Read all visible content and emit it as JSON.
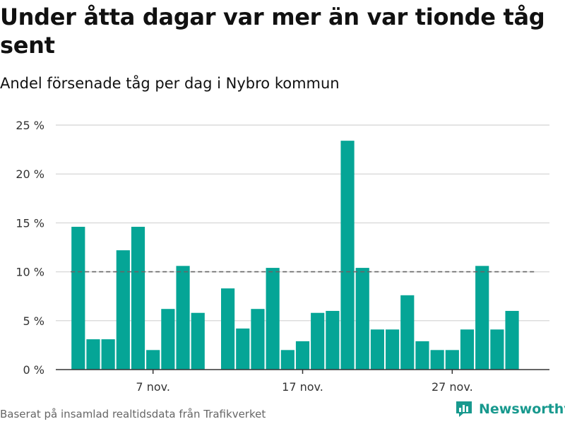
{
  "header": {
    "title": "Under åtta dagar var mer än var tionde tåg sent",
    "subtitle": "Andel försenade tåg per dag i Nybro kommun"
  },
  "footer": {
    "source": "Baserat på insamlad realtidsdata från Trafikverket",
    "brand": "Newsworthy"
  },
  "colors": {
    "bar": "#05a596",
    "grid": "#dcdcdc",
    "reference": "#666666",
    "brand": "#18998e"
  },
  "chart_data": {
    "type": "bar",
    "x": [
      "1 nov.",
      "2 nov.",
      "3 nov.",
      "4 nov.",
      "5 nov.",
      "6 nov.",
      "7 nov.",
      "8 nov.",
      "9 nov.",
      "10 nov.",
      "11 nov.",
      "12 nov.",
      "13 nov.",
      "14 nov.",
      "15 nov.",
      "16 nov.",
      "17 nov.",
      "18 nov.",
      "19 nov.",
      "20 nov.",
      "21 nov.",
      "22 nov.",
      "23 nov.",
      "24 nov.",
      "25 nov.",
      "26 nov.",
      "27 nov.",
      "28 nov.",
      "29 nov.",
      "30 nov.",
      "1 dec.",
      "2 dec.",
      "3 dec."
    ],
    "values": [
      null,
      14.6,
      3.1,
      3.1,
      12.2,
      14.6,
      2.0,
      6.2,
      10.6,
      5.8,
      null,
      8.3,
      4.2,
      6.2,
      10.4,
      2.0,
      2.9,
      5.8,
      6.0,
      23.4,
      10.4,
      4.1,
      4.1,
      7.6,
      2.9,
      2.0,
      2.0,
      4.1,
      10.6,
      4.1,
      6.0,
      null,
      null
    ],
    "xticks": [
      {
        "x": "7 nov.",
        "label": "7 nov."
      },
      {
        "x": "17 nov.",
        "label": "17 nov."
      },
      {
        "x": "27 nov.",
        "label": "27 nov."
      }
    ],
    "yticks": [
      0,
      5,
      10,
      15,
      20,
      25
    ],
    "ytick_labels": [
      "0 %",
      "5 %",
      "10 %",
      "15 %",
      "20 %",
      "25 %"
    ],
    "ylim": [
      0,
      25
    ],
    "reference_line": {
      "value": 10,
      "from": "2 nov.",
      "to": "31 nov."
    },
    "grid": true
  }
}
